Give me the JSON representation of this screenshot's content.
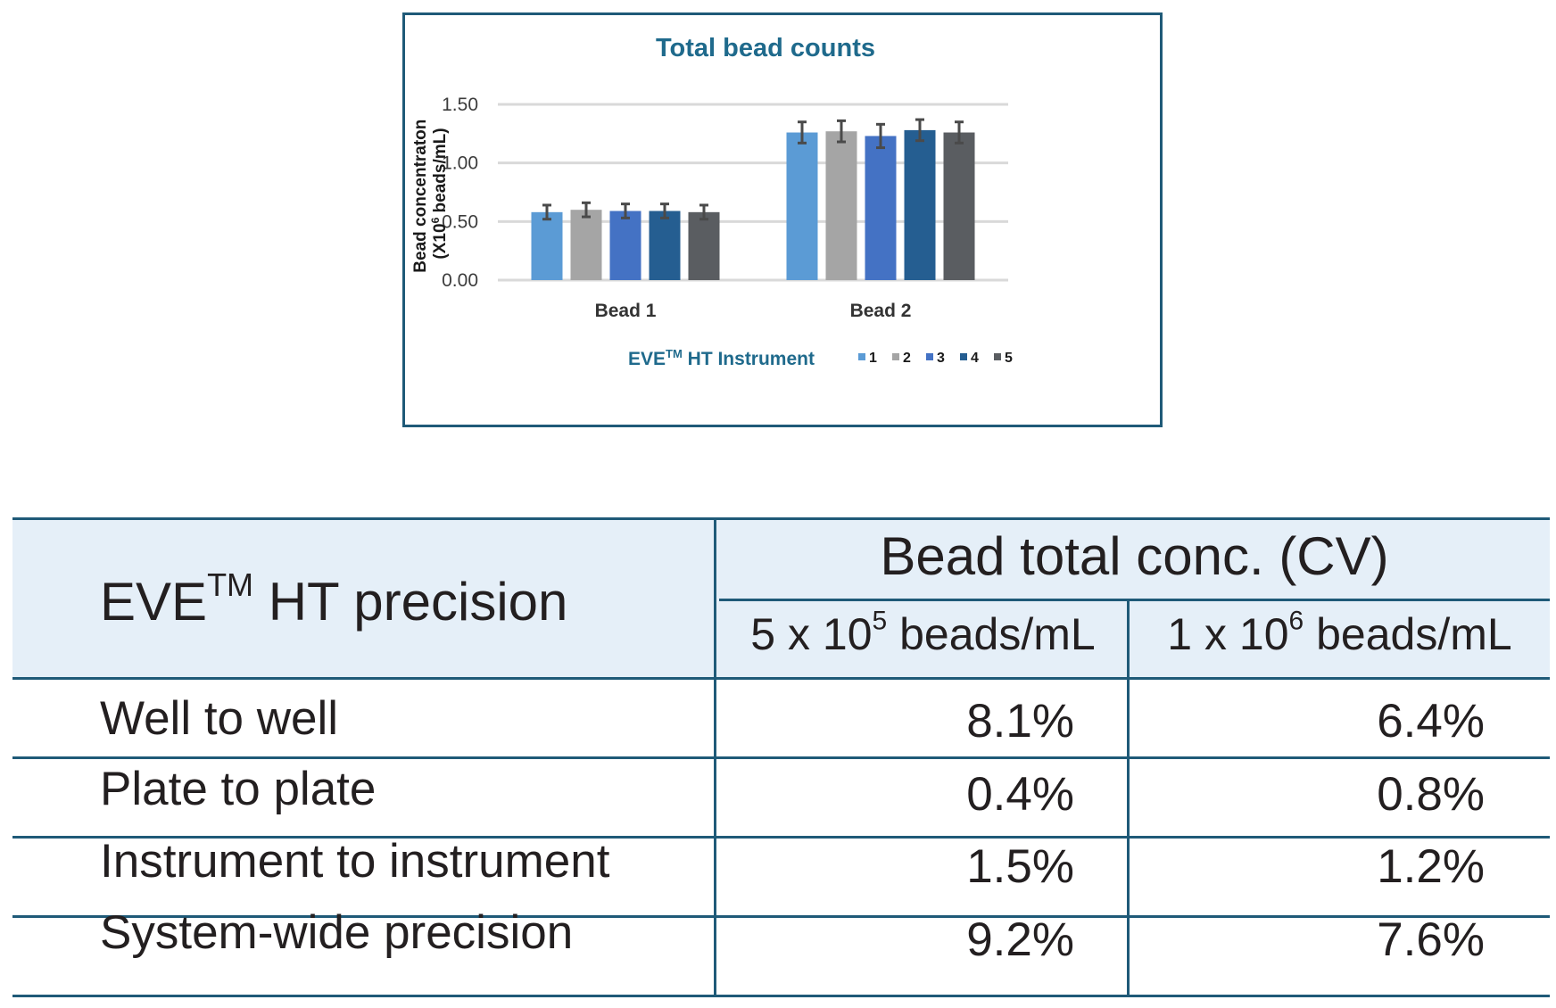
{
  "chart_data": {
    "type": "bar",
    "title": "Total bead counts",
    "ylabel_line1": "Bead concentraton",
    "ylabel_line2_prefix": "(X10",
    "ylabel_line2_sup": "6",
    "ylabel_line2_suffix": " beads/mL)",
    "ylim": [
      0,
      1.5
    ],
    "yticks": [
      "0.00",
      "0.50",
      "1.00",
      "1.50"
    ],
    "ytick_values": [
      0,
      0.5,
      1.0,
      1.5
    ],
    "grid": true,
    "categories": [
      "Bead 1",
      "Bead 2"
    ],
    "legend_title_prefix": "EVE",
    "legend_title_sup": "TM",
    "legend_title_suffix": " HT Instrument",
    "legend_position": "bottom",
    "series": [
      {
        "name": "1",
        "color": "#5b9bd5",
        "values": [
          0.58,
          1.26
        ],
        "errors": [
          0.06,
          0.09
        ]
      },
      {
        "name": "2",
        "color": "#a5a5a5",
        "values": [
          0.6,
          1.27
        ],
        "errors": [
          0.06,
          0.09
        ]
      },
      {
        "name": "3",
        "color": "#4472c4",
        "values": [
          0.59,
          1.23
        ],
        "errors": [
          0.06,
          0.1
        ]
      },
      {
        "name": "4",
        "color": "#255e91",
        "values": [
          0.59,
          1.28
        ],
        "errors": [
          0.06,
          0.09
        ]
      },
      {
        "name": "5",
        "color": "#5a5d61",
        "values": [
          0.58,
          1.26
        ],
        "errors": [
          0.06,
          0.09
        ]
      }
    ],
    "error_bar_color": "#4a4a4a"
  },
  "table": {
    "row_header_prefix": "EVE",
    "row_header_sup": "TM",
    "row_header_suffix": " HT precision",
    "group_header": "Bead total conc. (CV)",
    "col1": {
      "prefix": "5 x 10",
      "sup": "5",
      "suffix": " beads/mL"
    },
    "col2": {
      "prefix": "1 x 10",
      "sup": "6",
      "suffix": " beads/mL"
    },
    "rows": [
      {
        "label": "Well to well",
        "v1": "8.1%",
        "v2": "6.4%"
      },
      {
        "label": "Plate to plate",
        "v1": "0.4%",
        "v2": "0.8%"
      },
      {
        "label": "Instrument to instrument",
        "v1": "1.5%",
        "v2": "1.2%"
      },
      {
        "label": "System-wide precision",
        "v1": "9.2%",
        "v2": "7.6%"
      }
    ],
    "line_color": "#1f5a78",
    "header_bg": "#e5eff8"
  }
}
